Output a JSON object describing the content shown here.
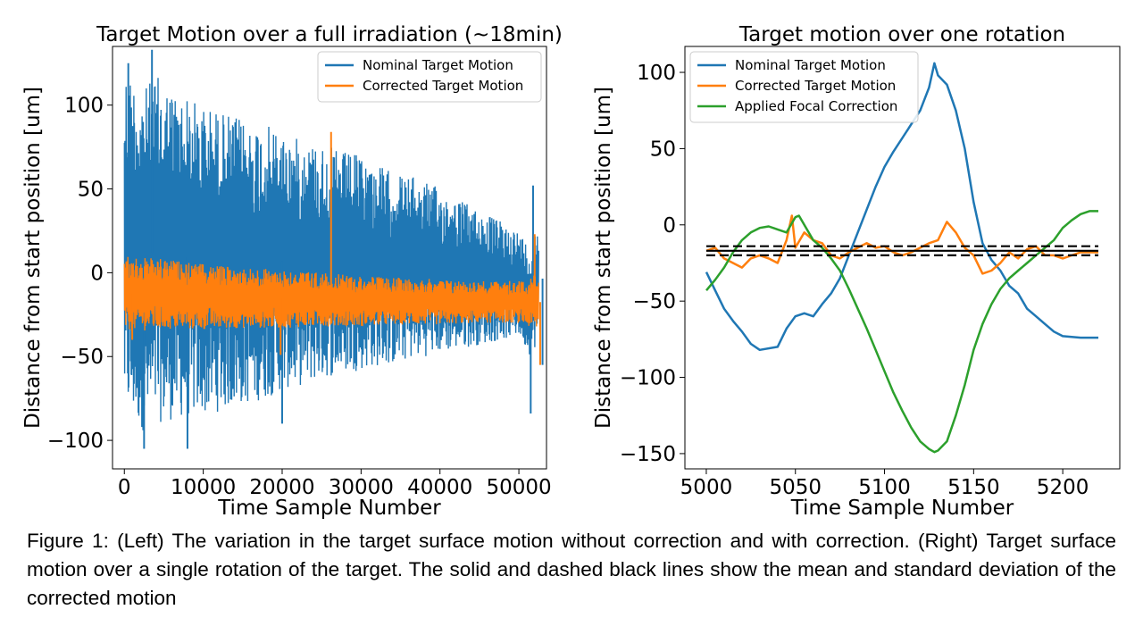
{
  "chart_data": [
    {
      "type": "line",
      "title": "Target Motion over a full irradiation (~18min)",
      "xlabel": "Time Sample Number",
      "ylabel": "Distance from start position [um]",
      "xlim": [
        -1500,
        53500
      ],
      "ylim": [
        -117,
        135
      ],
      "xticks": [
        0,
        10000,
        20000,
        30000,
        40000,
        50000
      ],
      "yticks": [
        -100,
        -50,
        0,
        50,
        100
      ],
      "xtick_labels": [
        "0",
        "10000",
        "20000",
        "30000",
        "40000",
        "50000"
      ],
      "ytick_labels": [
        "−100",
        "−50",
        "0",
        "50",
        "100"
      ],
      "grid": false,
      "legend": "top-right",
      "series": [
        {
          "name": "Nominal Target Motion",
          "color": "#1f77b4",
          "x": [
            0,
            1000,
            2500,
            4000,
            6000,
            8000,
            10000,
            12000,
            14000,
            16000,
            18000,
            20000,
            22000,
            24000,
            26000,
            28000,
            30000,
            32000,
            34000,
            36000,
            38000,
            40000,
            42000,
            44000,
            46000,
            48000,
            50000,
            51500,
            52500
          ],
          "upper": [
            125,
            118,
            110,
            118,
            110,
            105,
            100,
            97,
            93,
            90,
            88,
            84,
            80,
            78,
            75,
            72,
            70,
            65,
            60,
            58,
            55,
            50,
            45,
            40,
            35,
            30,
            25,
            15,
            33
          ],
          "lower": [
            -82,
            -88,
            -95,
            -90,
            -88,
            -86,
            -85,
            -83,
            -80,
            -78,
            -75,
            -70,
            -68,
            -65,
            -62,
            -60,
            -58,
            -56,
            -55,
            -52,
            -50,
            -48,
            -46,
            -44,
            -42,
            -40,
            -38,
            -50,
            -40
          ],
          "spikes": [
            [
              3500,
              133
            ],
            [
              500,
              125
            ],
            [
              2500,
              -105
            ],
            [
              8000,
              -105
            ],
            [
              20000,
              -90
            ],
            [
              51500,
              -84
            ],
            [
              53000,
              -55
            ],
            [
              51800,
              52
            ]
          ]
        },
        {
          "name": "Corrected Target Motion",
          "color": "#ff7f0e",
          "x": [
            0,
            5000,
            10000,
            15000,
            20000,
            25000,
            30000,
            35000,
            40000,
            45000,
            50000,
            52500
          ],
          "upper": [
            10,
            8,
            5,
            3,
            2,
            0,
            -2,
            -3,
            -4,
            -5,
            -5,
            0
          ],
          "lower": [
            -35,
            -34,
            -34,
            -33,
            -33,
            -32,
            -32,
            -31,
            -31,
            -30,
            -30,
            -35
          ],
          "spikes": [
            [
              26200,
              84
            ],
            [
              19800,
              -49
            ],
            [
              52000,
              23
            ],
            [
              52700,
              -55
            ],
            [
              1000,
              -40
            ]
          ]
        }
      ]
    },
    {
      "type": "line",
      "title": "Target motion over one rotation",
      "xlabel": "Time Sample Number",
      "ylabel": "Distance from start position [um]",
      "xlim": [
        4988,
        5232
      ],
      "ylim": [
        -160,
        117
      ],
      "xticks": [
        5000,
        5050,
        5100,
        5150,
        5200
      ],
      "yticks": [
        -150,
        -100,
        -50,
        0,
        50,
        100
      ],
      "xtick_labels": [
        "5000",
        "5050",
        "5100",
        "5150",
        "5200"
      ],
      "ytick_labels": [
        "−150",
        "−100",
        "−50",
        "0",
        "50",
        "100"
      ],
      "grid": false,
      "legend": "top-left",
      "series": [
        {
          "name": "Nominal Target Motion",
          "color": "#1f77b4",
          "x": [
            5000,
            5005,
            5010,
            5015,
            5020,
            5025,
            5030,
            5040,
            5045,
            5050,
            5055,
            5060,
            5065,
            5070,
            5075,
            5080,
            5085,
            5090,
            5095,
            5100,
            5105,
            5110,
            5115,
            5120,
            5125,
            5128,
            5130,
            5135,
            5140,
            5145,
            5150,
            5155,
            5160,
            5165,
            5170,
            5175,
            5180,
            5185,
            5190,
            5195,
            5200,
            5210,
            5220
          ],
          "values": [
            -31,
            -43,
            -55,
            -63,
            -70,
            -78,
            -82,
            -80,
            -68,
            -60,
            -58,
            -60,
            -52,
            -45,
            -35,
            -20,
            -5,
            10,
            25,
            38,
            48,
            57,
            66,
            75,
            90,
            106,
            98,
            92,
            75,
            50,
            15,
            -12,
            -23,
            -30,
            -40,
            -45,
            -55,
            -60,
            -65,
            -70,
            -73,
            -74,
            -74
          ]
        },
        {
          "name": "Corrected Target Motion",
          "color": "#ff7f0e",
          "x": [
            5000,
            5005,
            5010,
            5015,
            5020,
            5025,
            5030,
            5035,
            5040,
            5045,
            5048,
            5050,
            5055,
            5060,
            5065,
            5070,
            5075,
            5080,
            5085,
            5090,
            5095,
            5100,
            5105,
            5110,
            5115,
            5120,
            5125,
            5130,
            5135,
            5140,
            5145,
            5150,
            5155,
            5160,
            5165,
            5170,
            5175,
            5180,
            5185,
            5190,
            5195,
            5200,
            5210,
            5220
          ],
          "values": [
            -17,
            -15,
            -22,
            -25,
            -28,
            -22,
            -20,
            -22,
            -25,
            -10,
            6,
            -15,
            -5,
            -10,
            -12,
            -20,
            -22,
            -18,
            -15,
            -12,
            -15,
            -14,
            -18,
            -20,
            -18,
            -15,
            -12,
            -10,
            2,
            -5,
            -15,
            -20,
            -32,
            -30,
            -25,
            -18,
            -22,
            -16,
            -14,
            -20,
            -20,
            -22,
            -18,
            -18
          ]
        },
        {
          "name": "Applied Focal Correction",
          "color": "#2ca02c",
          "x": [
            5000,
            5005,
            5010,
            5015,
            5020,
            5025,
            5030,
            5035,
            5040,
            5045,
            5050,
            5052,
            5055,
            5060,
            5065,
            5070,
            5075,
            5080,
            5085,
            5090,
            5095,
            5100,
            5105,
            5110,
            5115,
            5120,
            5125,
            5128,
            5130,
            5135,
            5140,
            5145,
            5150,
            5155,
            5160,
            5165,
            5170,
            5175,
            5180,
            5185,
            5190,
            5195,
            5200,
            5205,
            5210,
            5215,
            5220
          ],
          "values": [
            -43,
            -36,
            -28,
            -18,
            -10,
            -5,
            -2,
            -1,
            -3,
            -5,
            5,
            6,
            0,
            -10,
            -15,
            -22,
            -30,
            -42,
            -55,
            -68,
            -82,
            -96,
            -110,
            -122,
            -133,
            -142,
            -147,
            -149,
            -148,
            -142,
            -125,
            -105,
            -82,
            -65,
            -52,
            -42,
            -35,
            -30,
            -25,
            -20,
            -15,
            -10,
            -2,
            3,
            7,
            9,
            9
          ]
        },
        {
          "name": "",
          "color": "#000000",
          "style": "solid",
          "x": [
            5000,
            5220
          ],
          "values": [
            -17,
            -17
          ]
        },
        {
          "name": "",
          "color": "#000000",
          "style": "dashed",
          "x": [
            5000,
            5220
          ],
          "values": [
            -14,
            -14
          ]
        },
        {
          "name": "",
          "color": "#000000",
          "style": "dashed",
          "x": [
            5000,
            5220
          ],
          "values": [
            -20,
            -20
          ]
        }
      ]
    }
  ],
  "caption": "Figure 1: (Left) The variation in the target surface motion without correction and with correction. (Right) Target surface motion over a single rotation of the target. The solid and dashed black lines show the mean and standard deviation of the corrected motion"
}
